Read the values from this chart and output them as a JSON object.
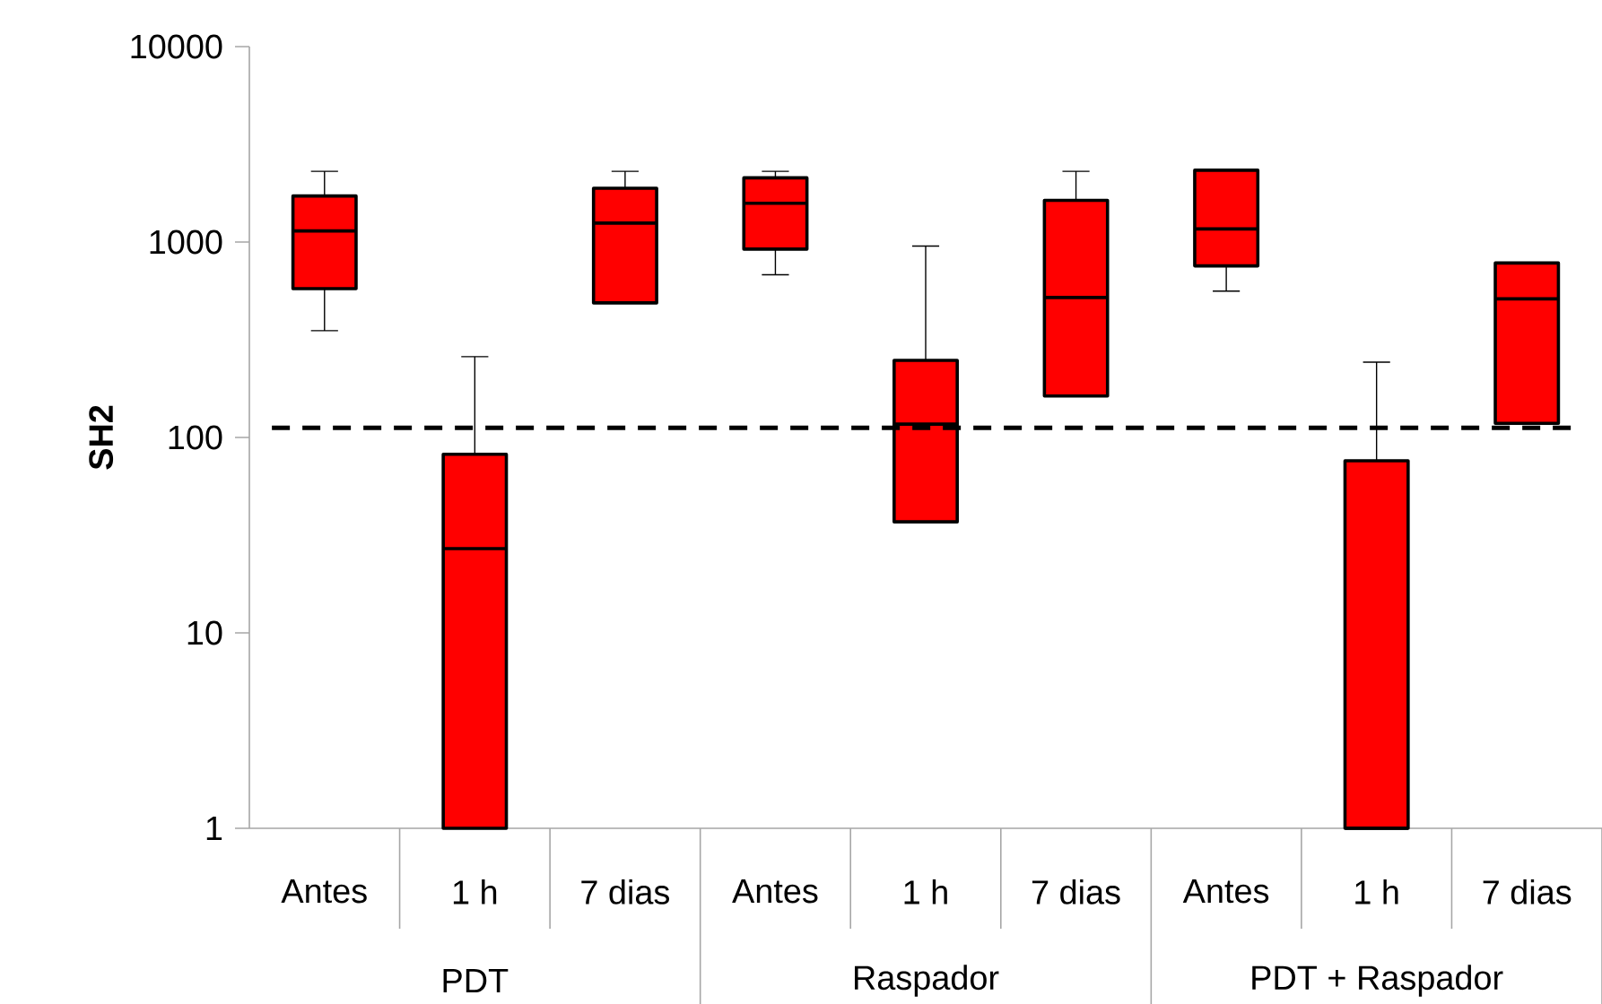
{
  "chart_data": {
    "type": "box",
    "ylabel": "**SH2**",
    "log": true,
    "ylim": [
      1,
      10000
    ],
    "yticks": [
      1,
      10,
      100,
      1000,
      10000
    ],
    "color": "#ff0000",
    "categories": [
      "Antes",
      "1 h",
      "7 dias",
      "Antes",
      "1 h",
      "7 dias",
      "Antes",
      "1 h",
      "7 dias"
    ],
    "boxes": [
      {
        "low": 352,
        "q1": 577,
        "median": 1140,
        "q3": 1720,
        "high": 2300
      },
      {
        "low": 1,
        "q1": 1,
        "median": 27,
        "q3": 82,
        "high": 259
      },
      {
        "low": 488,
        "q1": 488,
        "median": 1250,
        "q3": 1885,
        "high": 2300
      },
      {
        "low": 680,
        "q1": 920,
        "median": 1580,
        "q3": 2130,
        "high": 2300
      },
      {
        "low": 37,
        "q1": 37,
        "median": 117,
        "q3": 248,
        "high": 953
      },
      {
        "low": 163,
        "q1": 163,
        "median": 520,
        "q3": 1635,
        "high": 2300
      },
      {
        "low": 561,
        "q1": 755,
        "median": 1167,
        "q3": 2330,
        "high": 2330
      },
      {
        "low": 1,
        "q1": 1,
        "median": 1,
        "q3": 76,
        "high": 243
      },
      {
        "low": 118,
        "q1": 118,
        "median": 512,
        "q3": 781,
        "high": 781
      }
    ],
    "ref_lines": [
      {
        "axis": "y",
        "value": 112,
        "color": "#000000",
        "line_style": "dashed"
      }
    ],
    "annotations": [
      "PDT",
      "Raspador",
      "PDT +  Raspador"
    ]
  }
}
